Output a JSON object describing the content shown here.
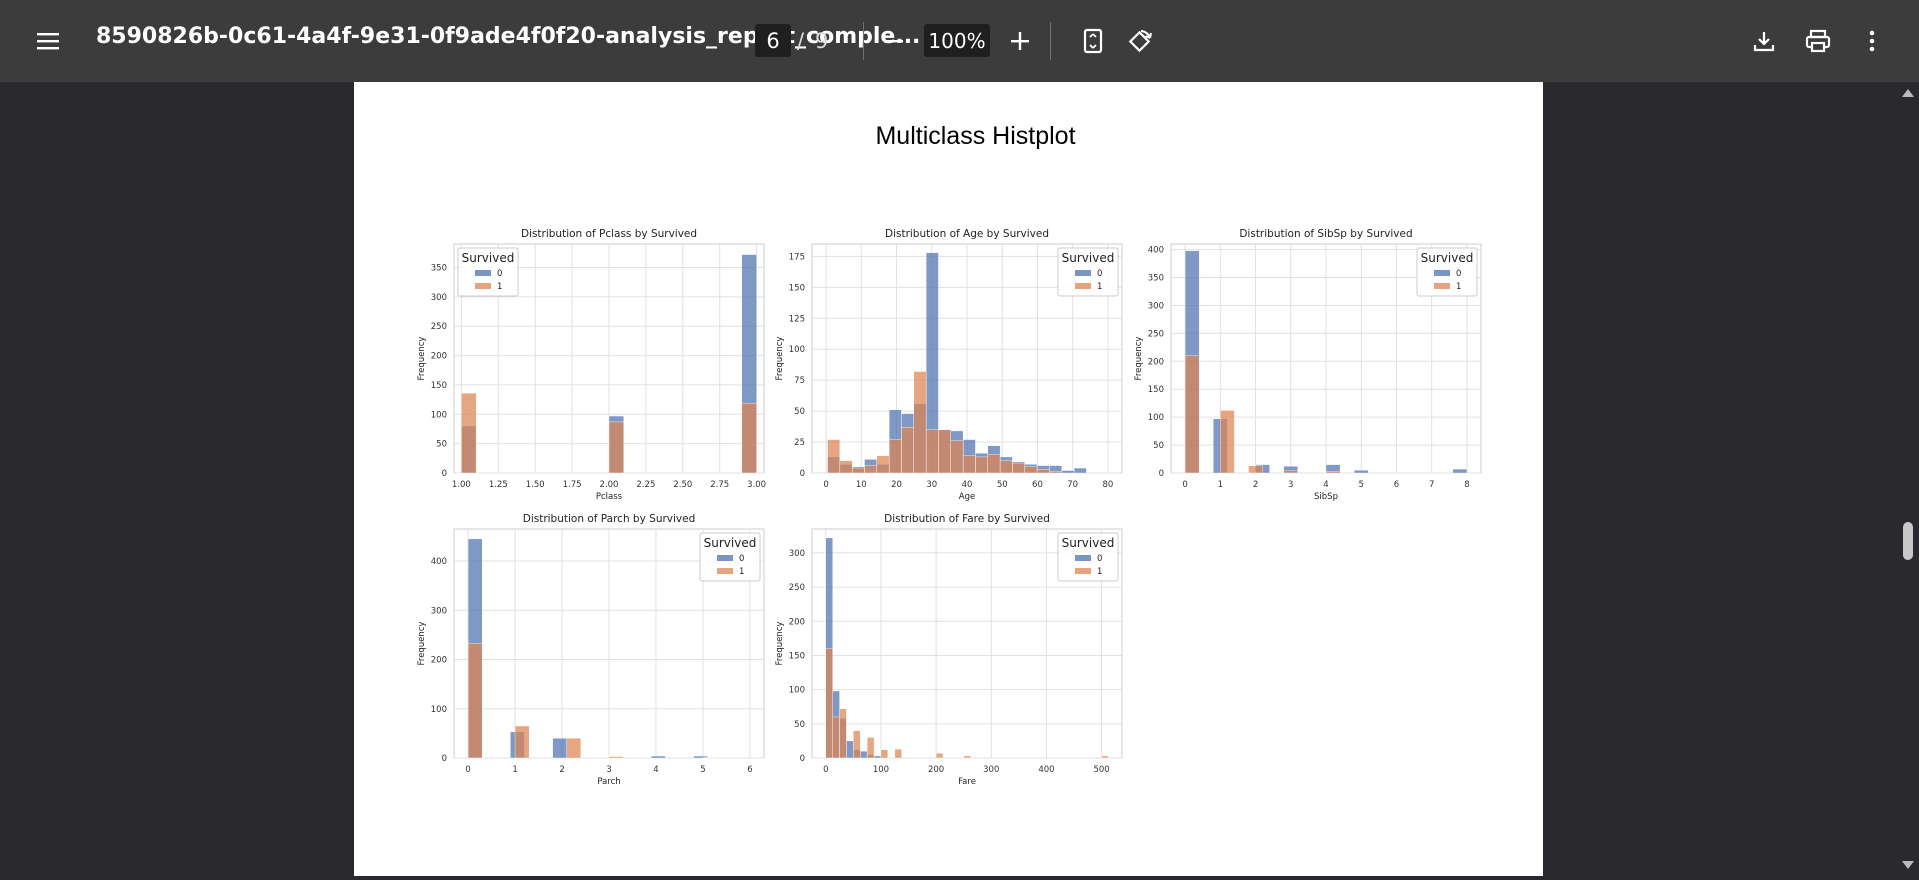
{
  "toolbar": {
    "menu_icon": "hamburger-menu-icon",
    "title": "8590826b-0c61-4a4f-9e31-0f9ade4f0f20-analysis_report_comple...",
    "page_current": "6",
    "page_separator": "/",
    "page_total": "9",
    "zoom": "100%",
    "icons": [
      "minus-icon",
      "plus-icon",
      "fit-page-icon",
      "rotate-icon",
      "download-icon",
      "print-icon",
      "more-vert-icon"
    ]
  },
  "page": {
    "heading": "Multiclass Histplot"
  },
  "colors": {
    "series0": "#4c72b0",
    "series1": "#dd8452",
    "toolbar_bg": "#3c3c3c",
    "viewer_bg": "#2a2a2e"
  },
  "chart_data": [
    {
      "type": "bar",
      "title": "Distribution of Pclass by Survived",
      "xlabel": "Pclass",
      "ylabel": "Frequency",
      "xlim": [
        0.95,
        3.05
      ],
      "ylim": [
        0,
        390
      ],
      "xticks": [
        "1.00",
        "1.25",
        "1.50",
        "1.75",
        "2.00",
        "2.25",
        "2.50",
        "2.75",
        "3.00"
      ],
      "xtick_values": [
        1.0,
        1.25,
        1.5,
        1.75,
        2.0,
        2.25,
        2.5,
        2.75,
        3.0
      ],
      "yticks": [
        0,
        50,
        100,
        150,
        200,
        250,
        300,
        350
      ],
      "legend": {
        "title": "Survived",
        "position": "top-left",
        "entries": [
          "0",
          "1"
        ]
      },
      "bin_width": 0.1,
      "series": [
        {
          "name": "0",
          "bins": [
            [
              1.0,
              80
            ],
            [
              2.0,
              97
            ],
            [
              2.9,
              372
            ]
          ]
        },
        {
          "name": "1",
          "bins": [
            [
              1.0,
              136
            ],
            [
              2.0,
              87
            ],
            [
              2.9,
              119
            ]
          ]
        }
      ]
    },
    {
      "type": "bar",
      "title": "Distribution of Age by Survived",
      "xlabel": "Age",
      "ylabel": "Frequency",
      "xlim": [
        -4,
        84
      ],
      "ylim": [
        0,
        185
      ],
      "xticks": [
        "0",
        "10",
        "20",
        "30",
        "40",
        "50",
        "60",
        "70",
        "80"
      ],
      "xtick_values": [
        0,
        10,
        20,
        30,
        40,
        50,
        60,
        70,
        80
      ],
      "yticks": [
        0,
        25,
        50,
        75,
        100,
        125,
        150,
        175
      ],
      "legend": {
        "title": "Survived",
        "position": "top-right",
        "entries": [
          "0",
          "1"
        ]
      },
      "bin_width": 3.5,
      "series": [
        {
          "name": "0",
          "bins": [
            [
              0.4,
              13
            ],
            [
              3.9,
              7
            ],
            [
              7.4,
              5
            ],
            [
              10.9,
              11
            ],
            [
              14.4,
              7
            ],
            [
              17.9,
              51
            ],
            [
              21.4,
              48
            ],
            [
              24.9,
              56
            ],
            [
              28.4,
              178
            ],
            [
              31.9,
              35
            ],
            [
              35.4,
              34
            ],
            [
              38.9,
              27
            ],
            [
              42.4,
              16
            ],
            [
              45.9,
              22
            ],
            [
              49.4,
              13
            ],
            [
              52.9,
              9
            ],
            [
              56.4,
              7
            ],
            [
              59.9,
              6
            ],
            [
              63.4,
              6
            ],
            [
              66.9,
              2
            ],
            [
              70.4,
              4
            ]
          ]
        },
        {
          "name": "1",
          "bins": [
            [
              0.4,
              27
            ],
            [
              3.9,
              10
            ],
            [
              7.4,
              4
            ],
            [
              10.9,
              6
            ],
            [
              14.4,
              14
            ],
            [
              17.9,
              27
            ],
            [
              21.4,
              37
            ],
            [
              24.9,
              82
            ],
            [
              28.4,
              35
            ],
            [
              31.9,
              35
            ],
            [
              35.4,
              26
            ],
            [
              38.9,
              14
            ],
            [
              42.4,
              13
            ],
            [
              45.9,
              15
            ],
            [
              49.4,
              10
            ],
            [
              52.9,
              8
            ],
            [
              56.4,
              5
            ],
            [
              59.9,
              3
            ],
            [
              63.4,
              1
            ],
            [
              66.9,
              0
            ],
            [
              70.4,
              0
            ]
          ]
        }
      ]
    },
    {
      "type": "bar",
      "title": "Distribution of SibSp by Survived",
      "xlabel": "SibSp",
      "ylabel": "Frequency",
      "xlim": [
        -0.4,
        8.4
      ],
      "ylim": [
        0,
        410
      ],
      "xticks": [
        "0",
        "1",
        "2",
        "3",
        "4",
        "5",
        "6",
        "7",
        "8"
      ],
      "xtick_values": [
        0,
        1,
        2,
        3,
        4,
        5,
        6,
        7,
        8
      ],
      "yticks": [
        0,
        50,
        100,
        150,
        200,
        250,
        300,
        350,
        400
      ],
      "legend": {
        "title": "Survived",
        "position": "top-right",
        "entries": [
          "0",
          "1"
        ]
      },
      "bin_width": 0.4,
      "series": [
        {
          "name": "0",
          "bins": [
            [
              0.0,
              398
            ],
            [
              0.8,
              97
            ],
            [
              2.0,
              15
            ],
            [
              2.8,
              12
            ],
            [
              4.0,
              15
            ],
            [
              4.8,
              5
            ],
            [
              7.6,
              7
            ]
          ]
        },
        {
          "name": "1",
          "bins": [
            [
              0.0,
              210
            ],
            [
              1.0,
              112
            ],
            [
              1.8,
              13
            ],
            [
              2.8,
              4
            ],
            [
              4.0,
              3
            ]
          ]
        }
      ]
    },
    {
      "type": "bar",
      "title": "Distribution of Parch by Survived",
      "xlabel": "Parch",
      "ylabel": "Frequency",
      "xlim": [
        -0.3,
        6.3
      ],
      "ylim": [
        0,
        465
      ],
      "xticks": [
        "0",
        "1",
        "2",
        "3",
        "4",
        "5",
        "6"
      ],
      "xtick_values": [
        0,
        1,
        2,
        3,
        4,
        5,
        6
      ],
      "yticks": [
        0,
        100,
        200,
        300,
        400
      ],
      "legend": {
        "title": "Survived",
        "position": "top-right",
        "entries": [
          "0",
          "1"
        ]
      },
      "bin_width": 0.3,
      "series": [
        {
          "name": "0",
          "bins": [
            [
              0.0,
              445
            ],
            [
              0.9,
              53
            ],
            [
              1.8,
              40
            ],
            [
              3.9,
              4
            ],
            [
              4.8,
              4
            ]
          ]
        },
        {
          "name": "1",
          "bins": [
            [
              0.0,
              233
            ],
            [
              1.0,
              65
            ],
            [
              2.1,
              40
            ],
            [
              3.0,
              3
            ],
            [
              5.0,
              1
            ]
          ]
        }
      ]
    },
    {
      "type": "bar",
      "title": "Distribution of Fare by Survived",
      "xlabel": "Fare",
      "ylabel": "Frequency",
      "xlim": [
        -25,
        537
      ],
      "ylim": [
        0,
        335
      ],
      "xticks": [
        "0",
        "100",
        "200",
        "300",
        "400",
        "500"
      ],
      "xtick_values": [
        0,
        100,
        200,
        300,
        400,
        500
      ],
      "yticks": [
        0,
        50,
        100,
        150,
        200,
        250,
        300
      ],
      "legend": {
        "title": "Survived",
        "position": "top-right",
        "entries": [
          "0",
          "1"
        ]
      },
      "bin_width": 12.5,
      "series": [
        {
          "name": "0",
          "bins": [
            [
              0,
              322
            ],
            [
              12.5,
              98
            ],
            [
              25,
              58
            ],
            [
              37.5,
              25
            ],
            [
              50,
              12
            ],
            [
              62.5,
              10
            ],
            [
              75,
              5
            ],
            [
              87.5,
              3
            ]
          ]
        },
        {
          "name": "1",
          "bins": [
            [
              0,
              160
            ],
            [
              12.5,
              60
            ],
            [
              25,
              72
            ],
            [
              50,
              40
            ],
            [
              75,
              30
            ],
            [
              100,
              12
            ],
            [
              125,
              13
            ],
            [
              200,
              7
            ],
            [
              250,
              3
            ],
            [
              500,
              3
            ]
          ]
        }
      ]
    }
  ]
}
